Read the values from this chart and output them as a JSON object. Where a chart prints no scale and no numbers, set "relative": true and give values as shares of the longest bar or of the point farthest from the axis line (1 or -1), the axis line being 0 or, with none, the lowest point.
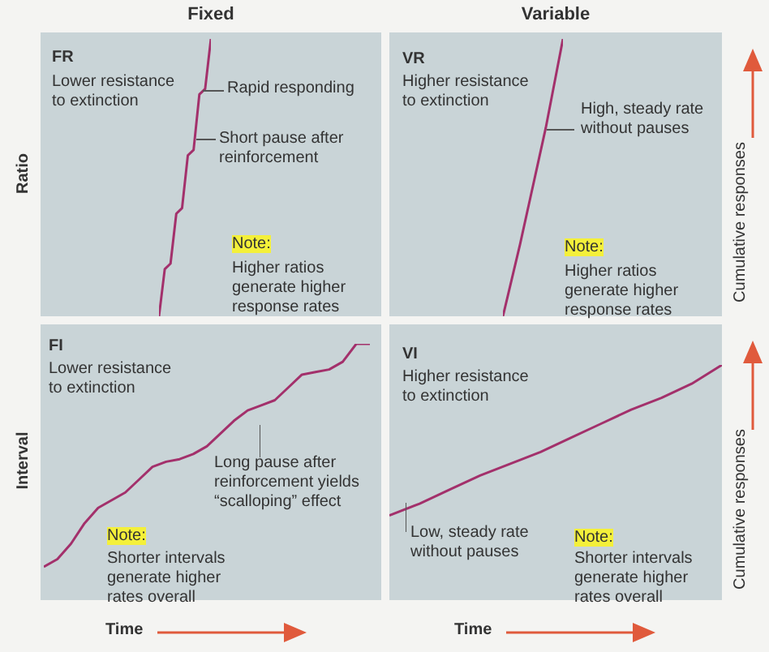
{
  "chart_data": [
    {
      "type": "line",
      "title": "Fixed",
      "ylabel": "Ratio",
      "relative": true,
      "annotations": [
        "FR",
        "Lower resistance to extinction",
        "Rapid responding",
        "Short pause after reinforcement",
        "Note:",
        "Higher ratios generate higher response rates"
      ],
      "categories": [
        null,
        null,
        null,
        null,
        null,
        null,
        null,
        null,
        null,
        null
      ],
      "series": [
        {
          "color": "#a3306b",
          "values": [
            0,
            0.17,
            0.19,
            0.37,
            0.39,
            0.58,
            0.6,
            0.8,
            0.82,
            1
          ]
        }
      ]
    },
    {
      "type": "line",
      "title": "Variable",
      "y2label": "Cumulative responses",
      "relative": true,
      "annotations": [
        "VR",
        "Higher resistance to extinction",
        "High, steady rate without pauses",
        "Note:",
        "Higher ratios generate higher response rates"
      ],
      "categories": [
        null,
        null,
        null,
        null,
        null,
        null,
        null,
        null
      ],
      "series": [
        {
          "color": "#a3306b",
          "values": [
            0,
            0.13,
            0.26,
            0.4,
            0.54,
            0.68,
            0.84,
            1
          ]
        }
      ]
    },
    {
      "type": "line",
      "ylabel": "Interval",
      "xlabel": "Time",
      "relative": true,
      "annotations": [
        "FI",
        "Lower resistance to extinction",
        "Long pause after reinforcement yields “scalloping” effect",
        "Note:",
        "Shorter intervals generate higher rates overall"
      ],
      "categories": [
        null,
        null,
        null,
        null,
        null,
        null,
        null,
        null,
        null,
        null,
        null,
        null,
        null,
        null,
        null,
        null,
        null,
        null,
        null,
        null,
        null,
        null,
        null,
        null,
        null
      ],
      "series": [
        {
          "color": "#a3306b",
          "values": [
            0.13,
            0.16,
            0.22,
            0.3,
            0.36,
            0.39,
            0.42,
            0.47,
            0.52,
            0.54,
            0.55,
            0.57,
            0.6,
            0.65,
            0.7,
            0.74,
            0.76,
            0.78,
            0.83,
            0.88,
            0.89,
            0.9,
            0.93,
            1,
            1
          ]
        }
      ]
    },
    {
      "type": "line",
      "xlabel": "Time",
      "y2label": "Cumulative responses",
      "relative": true,
      "annotations": [
        "VI",
        "Higher resistance to extinction",
        "Low, steady rate without pauses",
        "Note:",
        "Shorter intervals generate higher rates overall"
      ],
      "categories": [
        null,
        null,
        null,
        null,
        null,
        null,
        null,
        null,
        null,
        null,
        null,
        null
      ],
      "series": [
        {
          "color": "#a3306b",
          "values": [
            0.36,
            0.41,
            0.47,
            0.53,
            0.58,
            0.63,
            0.69,
            0.75,
            0.81,
            0.86,
            0.92,
            1
          ]
        }
      ]
    }
  ]
}
